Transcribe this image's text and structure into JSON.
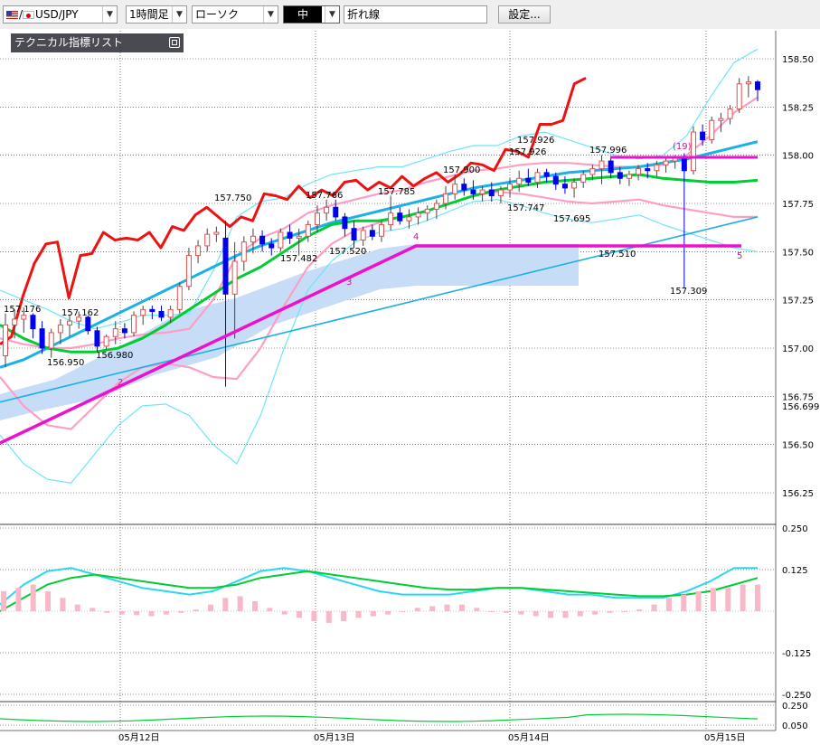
{
  "toolbar": {
    "symbol": "USD/JPY",
    "symbol_prefix": "/",
    "timeframe": "1時間足",
    "chart_type": "ローソク",
    "size": "中",
    "line_type": "折れ線",
    "settings_label": "設定..."
  },
  "panel": {
    "title": "テクニカル指標リスト"
  },
  "colors": {
    "bull_candle": "#e05050",
    "bear_candle": "#0000ee",
    "ma_short": "#00cc33",
    "ma_long": "#1ab0e8",
    "line_close": "#ee1111",
    "bollinger_outer": "#6ee6f4",
    "bollinger_inner": "#ff9ec4",
    "cloud": "#c6dcf7",
    "trendline": "#ee11cc"
  },
  "chart_data": {
    "type": "candlestick",
    "price_axis": {
      "min": 156.25,
      "max": 158.5,
      "ticks": [
        "158.50",
        "158.25",
        "158.00",
        "157.75",
        "157.50",
        "157.25",
        "157.00",
        "156.75",
        "156.50",
        "156.25"
      ],
      "current_price": "156.699"
    },
    "macd_axis": {
      "ticks": [
        "0.250",
        "0.125",
        "-0.125",
        "-0.250"
      ]
    },
    "sub_axis": {
      "ticks": [
        "0.250",
        "0.050"
      ]
    },
    "x_ticks": [
      "05月12日",
      "05月13日",
      "05月14日",
      "05月15日"
    ],
    "annotations": {
      "highs": [
        "157.176",
        "157.162",
        "157.750",
        "157.766",
        "157.785",
        "157.900",
        "157.926",
        "157.926",
        "157.996"
      ],
      "lows": [
        "156.950",
        "156.980",
        "157.482",
        "157.520",
        "157.747",
        "157.695",
        "157.510",
        "157.309"
      ],
      "wave_labels": [
        "2",
        "3",
        "4",
        "5",
        "(19)"
      ]
    },
    "candles": [
      {
        "o": 156.96,
        "h": 157.18,
        "l": 156.9,
        "c": 157.12
      },
      {
        "o": 157.12,
        "h": 157.2,
        "l": 157.05,
        "c": 157.15
      },
      {
        "o": 157.15,
        "h": 157.21,
        "l": 157.08,
        "c": 157.17
      },
      {
        "o": 157.17,
        "h": 157.18,
        "l": 157.05,
        "c": 157.1
      },
      {
        "o": 157.1,
        "h": 157.14,
        "l": 156.97,
        "c": 157.0
      },
      {
        "o": 157.0,
        "h": 157.1,
        "l": 156.95,
        "c": 157.08
      },
      {
        "o": 157.08,
        "h": 157.15,
        "l": 157.02,
        "c": 157.12
      },
      {
        "o": 157.12,
        "h": 157.17,
        "l": 157.06,
        "c": 157.14
      },
      {
        "o": 157.14,
        "h": 157.19,
        "l": 157.1,
        "c": 157.16
      },
      {
        "o": 157.16,
        "h": 157.17,
        "l": 157.07,
        "c": 157.09
      },
      {
        "o": 157.09,
        "h": 157.11,
        "l": 156.98,
        "c": 157.01
      },
      {
        "o": 157.01,
        "h": 157.07,
        "l": 156.99,
        "c": 157.06
      },
      {
        "o": 157.06,
        "h": 157.14,
        "l": 157.02,
        "c": 157.1
      },
      {
        "o": 157.1,
        "h": 157.13,
        "l": 157.05,
        "c": 157.08
      },
      {
        "o": 157.08,
        "h": 157.19,
        "l": 157.06,
        "c": 157.17
      },
      {
        "o": 157.17,
        "h": 157.22,
        "l": 157.12,
        "c": 157.2
      },
      {
        "o": 157.2,
        "h": 157.22,
        "l": 157.15,
        "c": 157.19
      },
      {
        "o": 157.19,
        "h": 157.22,
        "l": 157.14,
        "c": 157.16
      },
      {
        "o": 157.16,
        "h": 157.22,
        "l": 157.13,
        "c": 157.2
      },
      {
        "o": 157.2,
        "h": 157.34,
        "l": 157.18,
        "c": 157.32
      },
      {
        "o": 157.32,
        "h": 157.52,
        "l": 157.3,
        "c": 157.48
      },
      {
        "o": 157.48,
        "h": 157.56,
        "l": 157.44,
        "c": 157.53
      },
      {
        "o": 157.53,
        "h": 157.62,
        "l": 157.5,
        "c": 157.59
      },
      {
        "o": 157.59,
        "h": 157.63,
        "l": 157.55,
        "c": 157.6
      },
      {
        "o": 157.57,
        "h": 157.66,
        "l": 156.8,
        "c": 157.28
      },
      {
        "o": 157.28,
        "h": 157.55,
        "l": 157.05,
        "c": 157.45
      },
      {
        "o": 157.45,
        "h": 157.58,
        "l": 157.4,
        "c": 157.55
      },
      {
        "o": 157.55,
        "h": 157.62,
        "l": 157.49,
        "c": 157.58
      },
      {
        "o": 157.58,
        "h": 157.61,
        "l": 157.5,
        "c": 157.54
      },
      {
        "o": 157.54,
        "h": 157.57,
        "l": 157.48,
        "c": 157.52
      },
      {
        "o": 157.52,
        "h": 157.62,
        "l": 157.5,
        "c": 157.6
      },
      {
        "o": 157.6,
        "h": 157.64,
        "l": 157.54,
        "c": 157.57
      },
      {
        "o": 157.57,
        "h": 157.62,
        "l": 157.48,
        "c": 157.58
      },
      {
        "o": 157.58,
        "h": 157.66,
        "l": 157.55,
        "c": 157.64
      },
      {
        "o": 157.64,
        "h": 157.74,
        "l": 157.6,
        "c": 157.7
      },
      {
        "o": 157.7,
        "h": 157.77,
        "l": 157.66,
        "c": 157.73
      },
      {
        "o": 157.73,
        "h": 157.77,
        "l": 157.66,
        "c": 157.68
      },
      {
        "o": 157.68,
        "h": 157.7,
        "l": 157.58,
        "c": 157.62
      },
      {
        "o": 157.62,
        "h": 157.66,
        "l": 157.52,
        "c": 157.56
      },
      {
        "o": 157.56,
        "h": 157.63,
        "l": 157.53,
        "c": 157.61
      },
      {
        "o": 157.61,
        "h": 157.64,
        "l": 157.56,
        "c": 157.58
      },
      {
        "o": 157.58,
        "h": 157.66,
        "l": 157.55,
        "c": 157.64
      },
      {
        "o": 157.64,
        "h": 157.79,
        "l": 157.61,
        "c": 157.7
      },
      {
        "o": 157.7,
        "h": 157.73,
        "l": 157.64,
        "c": 157.66
      },
      {
        "o": 157.66,
        "h": 157.72,
        "l": 157.62,
        "c": 157.68
      },
      {
        "o": 157.68,
        "h": 157.73,
        "l": 157.64,
        "c": 157.7
      },
      {
        "o": 157.7,
        "h": 157.74,
        "l": 157.66,
        "c": 157.72
      },
      {
        "o": 157.72,
        "h": 157.77,
        "l": 157.67,
        "c": 157.75
      },
      {
        "o": 157.75,
        "h": 157.84,
        "l": 157.72,
        "c": 157.8
      },
      {
        "o": 157.8,
        "h": 157.9,
        "l": 157.77,
        "c": 157.85
      },
      {
        "o": 157.85,
        "h": 157.88,
        "l": 157.79,
        "c": 157.82
      },
      {
        "o": 157.82,
        "h": 157.87,
        "l": 157.77,
        "c": 157.8
      },
      {
        "o": 157.8,
        "h": 157.84,
        "l": 157.76,
        "c": 157.82
      },
      {
        "o": 157.82,
        "h": 157.86,
        "l": 157.76,
        "c": 157.79
      },
      {
        "o": 157.79,
        "h": 157.84,
        "l": 157.75,
        "c": 157.82
      },
      {
        "o": 157.82,
        "h": 157.88,
        "l": 157.78,
        "c": 157.85
      },
      {
        "o": 157.85,
        "h": 157.92,
        "l": 157.81,
        "c": 157.88
      },
      {
        "o": 157.88,
        "h": 157.93,
        "l": 157.84,
        "c": 157.86
      },
      {
        "o": 157.86,
        "h": 157.93,
        "l": 157.83,
        "c": 157.91
      },
      {
        "o": 157.91,
        "h": 157.93,
        "l": 157.86,
        "c": 157.89
      },
      {
        "o": 157.89,
        "h": 157.91,
        "l": 157.82,
        "c": 157.85
      },
      {
        "o": 157.85,
        "h": 157.89,
        "l": 157.8,
        "c": 157.83
      },
      {
        "o": 157.83,
        "h": 157.88,
        "l": 157.78,
        "c": 157.86
      },
      {
        "o": 157.86,
        "h": 157.92,
        "l": 157.83,
        "c": 157.9
      },
      {
        "o": 157.9,
        "h": 157.95,
        "l": 157.87,
        "c": 157.93
      },
      {
        "o": 157.93,
        "h": 158.0,
        "l": 157.85,
        "c": 157.97
      },
      {
        "o": 157.97,
        "h": 157.99,
        "l": 157.88,
        "c": 157.91
      },
      {
        "o": 157.91,
        "h": 157.94,
        "l": 157.85,
        "c": 157.88
      },
      {
        "o": 157.88,
        "h": 157.92,
        "l": 157.84,
        "c": 157.9
      },
      {
        "o": 157.9,
        "h": 157.95,
        "l": 157.87,
        "c": 157.93
      },
      {
        "o": 157.93,
        "h": 157.96,
        "l": 157.88,
        "c": 157.92
      },
      {
        "o": 157.92,
        "h": 157.97,
        "l": 157.89,
        "c": 157.95
      },
      {
        "o": 157.95,
        "h": 157.99,
        "l": 157.91,
        "c": 157.97
      },
      {
        "o": 157.97,
        "h": 158.0,
        "l": 157.93,
        "c": 157.99
      },
      {
        "o": 157.99,
        "h": 158.01,
        "l": 157.31,
        "c": 157.92
      },
      {
        "o": 157.92,
        "h": 158.15,
        "l": 157.9,
        "c": 158.12
      },
      {
        "o": 158.12,
        "h": 158.16,
        "l": 158.05,
        "c": 158.08
      },
      {
        "o": 158.08,
        "h": 158.2,
        "l": 158.06,
        "c": 158.18
      },
      {
        "o": 158.18,
        "h": 158.22,
        "l": 158.12,
        "c": 158.19
      },
      {
        "o": 158.19,
        "h": 158.26,
        "l": 158.16,
        "c": 158.24
      },
      {
        "o": 158.24,
        "h": 158.4,
        "l": 158.22,
        "c": 158.37
      },
      {
        "o": 158.37,
        "h": 158.41,
        "l": 158.3,
        "c": 158.38
      },
      {
        "o": 158.38,
        "h": 158.39,
        "l": 158.28,
        "c": 158.34
      }
    ],
    "close_line": [
      157.02,
      157.06,
      157.27,
      157.44,
      157.54,
      157.55,
      157.26,
      157.48,
      157.49,
      157.6,
      157.56,
      157.57,
      157.56,
      157.6,
      157.52,
      157.63,
      157.61,
      157.69,
      157.73,
      157.68,
      157.63,
      157.68,
      157.66,
      157.8,
      157.79,
      157.77,
      157.84,
      157.78,
      157.82,
      157.79,
      157.86,
      157.87,
      157.82,
      157.86,
      157.83,
      157.89,
      157.84,
      157.88,
      157.91,
      157.86,
      157.9,
      157.96,
      157.95,
      157.92,
      158.03,
      158.02,
      157.99,
      158.16,
      158.16,
      158.18,
      158.37,
      158.4
    ],
    "ma_short": [
      157.12,
      157.05,
      157.0,
      156.98,
      156.98,
      157.0,
      157.05,
      157.12,
      157.2,
      157.28,
      157.36,
      157.42,
      157.5,
      157.58,
      157.64,
      157.66,
      157.66,
      157.68,
      157.71,
      157.75,
      157.79,
      157.82,
      157.84,
      157.86,
      157.87,
      157.88,
      157.89,
      157.9,
      157.88,
      157.87,
      157.86,
      157.86,
      157.87
    ],
    "ma_long": [
      156.9,
      156.94,
      157.0,
      157.06,
      157.12,
      157.18,
      157.24,
      157.3,
      157.36,
      157.42,
      157.48,
      157.53,
      157.57,
      157.61,
      157.65,
      157.68,
      157.71,
      157.74,
      157.77,
      157.8,
      157.83,
      157.85,
      157.87,
      157.89,
      157.91,
      157.92,
      157.93,
      157.94,
      157.96,
      157.98,
      158.01,
      158.04,
      158.07
    ],
    "bb_upper": [
      157.3,
      157.25,
      157.2,
      157.14,
      157.1,
      157.13,
      157.17,
      157.17,
      157.18,
      157.4,
      157.68,
      157.76,
      157.78,
      157.85,
      157.9,
      157.92,
      157.94,
      157.94,
      157.98,
      158.02,
      158.05,
      158.05,
      158.1,
      158.12,
      158.08,
      158.04,
      158.0,
      157.98,
      158.0,
      158.1,
      158.3,
      158.48,
      158.55
    ],
    "bb_lower": [
      156.55,
      156.4,
      156.32,
      156.3,
      156.45,
      156.6,
      156.7,
      156.71,
      156.65,
      156.5,
      156.4,
      156.65,
      157.0,
      157.3,
      157.45,
      157.55,
      157.6,
      157.62,
      157.66,
      157.71,
      157.76,
      157.77,
      157.74,
      157.7,
      157.67,
      157.65,
      157.67,
      157.69,
      157.64,
      157.6,
      157.56,
      157.52,
      157.5
    ],
    "bb_mid_upper": [
      157.05,
      157.02,
      157.0,
      157.0,
      157.02,
      157.05,
      157.07,
      157.08,
      157.1,
      157.25,
      157.48,
      157.57,
      157.62,
      157.7,
      157.74,
      157.77,
      157.8,
      157.82,
      157.86,
      157.89,
      157.92,
      157.93,
      157.95,
      157.96,
      157.96,
      157.95,
      157.94,
      157.94,
      157.95,
      158.0,
      158.1,
      158.22,
      158.3
    ],
    "bb_mid_lower": [
      156.85,
      156.7,
      156.6,
      156.58,
      156.7,
      156.82,
      156.9,
      156.92,
      156.9,
      156.85,
      156.84,
      157.0,
      157.22,
      157.42,
      157.54,
      157.61,
      157.65,
      157.68,
      157.71,
      157.75,
      157.79,
      157.81,
      157.8,
      157.78,
      157.76,
      157.75,
      157.76,
      157.77,
      157.74,
      157.72,
      157.7,
      157.68,
      157.68
    ],
    "macd_hist": [
      0.06,
      0.07,
      0.08,
      0.06,
      0.04,
      0.02,
      0.01,
      -0.005,
      -0.01,
      -0.012,
      -0.015,
      -0.01,
      -0.005,
      0.005,
      0.02,
      0.04,
      0.045,
      0.03,
      0.01,
      -0.01,
      -0.02,
      -0.03,
      -0.035,
      -0.03,
      -0.02,
      -0.015,
      -0.01,
      0.0,
      0.01,
      0.015,
      0.02,
      0.02,
      0.01,
      0.0,
      -0.005,
      -0.01,
      -0.015,
      -0.02,
      -0.02,
      -0.015,
      -0.01,
      -0.005,
      0.0,
      0.005,
      0.02,
      0.04,
      0.05,
      0.06,
      0.07,
      0.07,
      0.08,
      0.08
    ],
    "macd_line": [
      0.02,
      0.08,
      0.12,
      0.13,
      0.11,
      0.09,
      0.07,
      0.06,
      0.05,
      0.06,
      0.09,
      0.12,
      0.13,
      0.12,
      0.1,
      0.08,
      0.06,
      0.05,
      0.05,
      0.05,
      0.06,
      0.07,
      0.07,
      0.06,
      0.05,
      0.05,
      0.04,
      0.04,
      0.04,
      0.06,
      0.09,
      0.13,
      0.13
    ],
    "signal_line": [
      0.0,
      0.04,
      0.08,
      0.1,
      0.11,
      0.1,
      0.09,
      0.08,
      0.07,
      0.07,
      0.08,
      0.1,
      0.11,
      0.12,
      0.11,
      0.1,
      0.09,
      0.08,
      0.07,
      0.065,
      0.065,
      0.07,
      0.07,
      0.065,
      0.06,
      0.055,
      0.05,
      0.045,
      0.045,
      0.05,
      0.06,
      0.08,
      0.1
    ]
  }
}
